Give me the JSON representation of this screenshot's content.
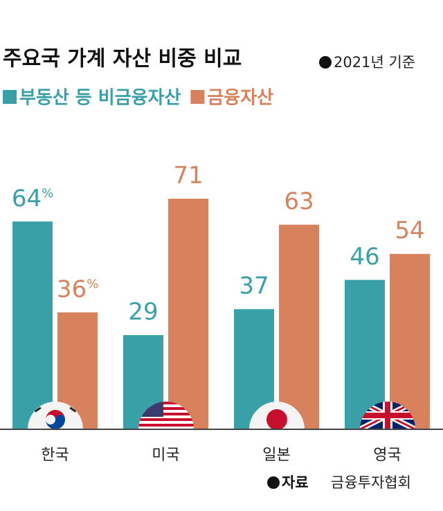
{
  "chart_data": {
    "type": "bar",
    "title": "주요국 가계 자산 비중 비교",
    "subtitle": "2021년 기준",
    "categories": [
      "한국",
      "미국",
      "일본",
      "영국"
    ],
    "series": [
      {
        "name": "부동산 등 비금융자산",
        "color": "#3aa0a7",
        "values": [
          64,
          29,
          37,
          46
        ],
        "value_labels": [
          "64%",
          "29",
          "37",
          "46"
        ]
      },
      {
        "name": "금융자산",
        "color": "#d7825c",
        "values": [
          36,
          71,
          63,
          54
        ],
        "value_labels": [
          "36%",
          "71",
          "63",
          "54"
        ]
      }
    ],
    "ylim": [
      0,
      100
    ],
    "source": {
      "label": "자료",
      "text": "금융투자협회"
    }
  }
}
